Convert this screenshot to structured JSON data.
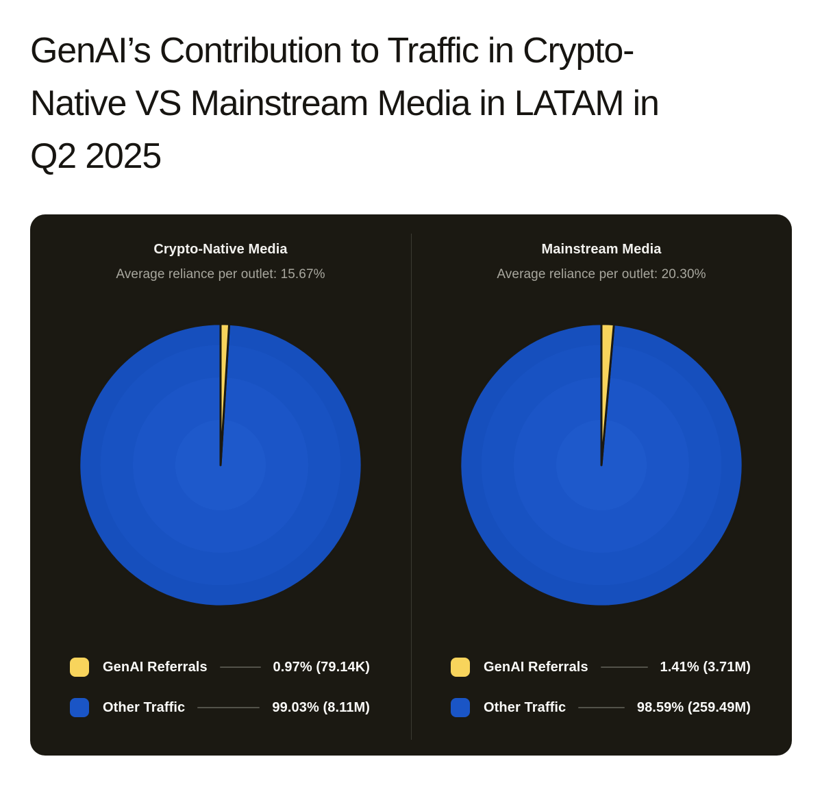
{
  "page": {
    "title_lines": [
      "GenAI’s Contribution to Traffic in Crypto-",
      "Native VS Mainstream Media in LATAM in",
      "Q2 2025"
    ],
    "title_full": "GenAI’s Contribution to Traffic in Crypto-Native VS Mainstream Media in LATAM in Q2 2025"
  },
  "colors": {
    "page_bg": "#ffffff",
    "title_text": "#171511",
    "card_bg": "#1b1912",
    "divider": "#3c3b33",
    "panel_title_text": "#f2f1ee",
    "subtitle_text": "#a8a79e",
    "legend_text": "#fafaf8",
    "leader_line": "#53524a",
    "genai_yellow": "#f8d45c",
    "other_blue": "#1a55c6",
    "pie_rings": [
      "#1e59cb",
      "#1b55c7",
      "#1852c2",
      "#164fbd"
    ]
  },
  "chart_data": [
    {
      "type": "pie",
      "title": "Crypto-Native Media",
      "subtitle": "Average reliance per outlet: 15.67%",
      "avg_reliance_pct": 15.67,
      "slices": [
        {
          "label": "GenAI Referrals",
          "percent": 0.97,
          "amount": "79.14K",
          "display": "0.97% (79.14K)",
          "color": "#f8d45c"
        },
        {
          "label": "Other Traffic",
          "percent": 99.03,
          "amount": "8.11M",
          "display": "99.03% (8.11M)",
          "color": "#1a55c6"
        }
      ]
    },
    {
      "type": "pie",
      "title": "Mainstream Media",
      "subtitle": "Average reliance per outlet: 20.30%",
      "avg_reliance_pct": 20.3,
      "slices": [
        {
          "label": "GenAI Referrals",
          "percent": 1.41,
          "amount": "3.71M",
          "display": "1.41% (3.71M)",
          "color": "#f8d45c"
        },
        {
          "label": "Other Traffic",
          "percent": 98.59,
          "amount": "259.49M",
          "display": "98.59% (259.49M)",
          "color": "#1a55c6"
        }
      ]
    }
  ]
}
